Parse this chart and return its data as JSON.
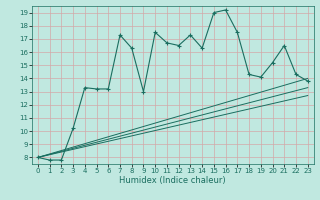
{
  "xlabel": "Humidex (Indice chaleur)",
  "bg_color": "#c0e8e0",
  "line_color": "#1a6e60",
  "grid_color": "#d4a8a8",
  "xlim": [
    -0.5,
    23.5
  ],
  "ylim": [
    7.5,
    19.5
  ],
  "xticks": [
    0,
    1,
    2,
    3,
    4,
    5,
    6,
    7,
    8,
    9,
    10,
    11,
    12,
    13,
    14,
    15,
    16,
    17,
    18,
    19,
    20,
    21,
    22,
    23
  ],
  "yticks": [
    8,
    9,
    10,
    11,
    12,
    13,
    14,
    15,
    16,
    17,
    18,
    19
  ],
  "main_x": [
    0,
    1,
    2,
    3,
    4,
    5,
    6,
    7,
    8,
    9,
    10,
    11,
    12,
    13,
    14,
    15,
    16,
    17,
    18,
    19,
    20,
    21,
    22,
    23
  ],
  "main_y": [
    8.0,
    7.8,
    7.8,
    10.2,
    13.3,
    13.2,
    13.2,
    17.3,
    16.3,
    13.0,
    17.5,
    16.7,
    16.5,
    17.3,
    16.3,
    19.0,
    19.2,
    17.5,
    14.3,
    14.1,
    15.2,
    16.5,
    14.3,
    13.8
  ],
  "line1_x": [
    0,
    23
  ],
  "line1_y": [
    8.0,
    14.0
  ],
  "line2_x": [
    0,
    23
  ],
  "line2_y": [
    8.0,
    13.3
  ],
  "line3_x": [
    0,
    23
  ],
  "line3_y": [
    8.0,
    12.7
  ]
}
